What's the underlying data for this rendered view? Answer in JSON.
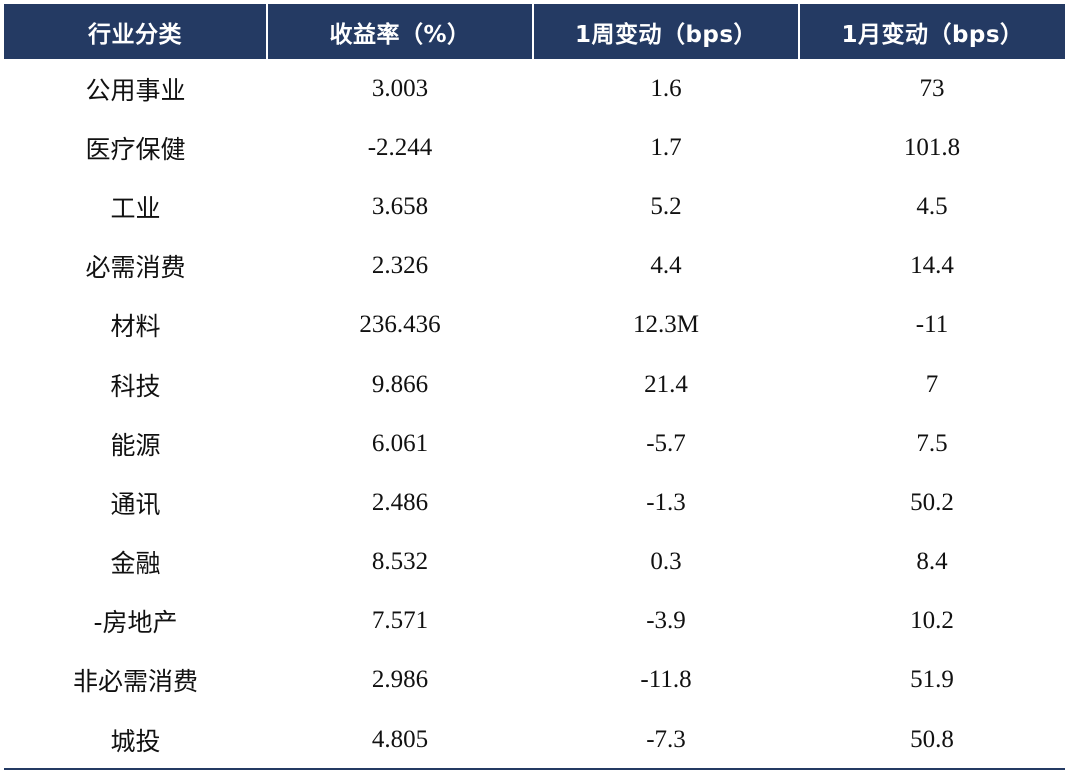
{
  "table": {
    "headers": [
      "行业分类",
      "收益率（%）",
      "1周变动（bps）",
      "1月变动（bps）"
    ],
    "rows": [
      [
        "公用事业",
        "3.003",
        "1.6",
        "73"
      ],
      [
        "医疗保健",
        "-2.244",
        "1.7",
        "101.8"
      ],
      [
        "工业",
        "3.658",
        "5.2",
        "4.5"
      ],
      [
        "必需消费",
        "2.326",
        "4.4",
        "14.4"
      ],
      [
        "材料",
        "236.436",
        "12.3M",
        "-11"
      ],
      [
        "科技",
        "9.866",
        "21.4",
        "7"
      ],
      [
        "能源",
        "6.061",
        "-5.7",
        "7.5"
      ],
      [
        "通讯",
        "2.486",
        "-1.3",
        "50.2"
      ],
      [
        "金融",
        "8.532",
        "0.3",
        "8.4"
      ],
      [
        "-房地产",
        "7.571",
        "-3.9",
        "10.2"
      ],
      [
        "非必需消费",
        "2.986",
        "-11.8",
        "51.9"
      ],
      [
        "城投",
        "4.805",
        "-7.3",
        "50.8"
      ]
    ]
  },
  "colors": {
    "header_bg": "#243a63",
    "header_text": "#ffffff",
    "body_text": "#111111"
  }
}
